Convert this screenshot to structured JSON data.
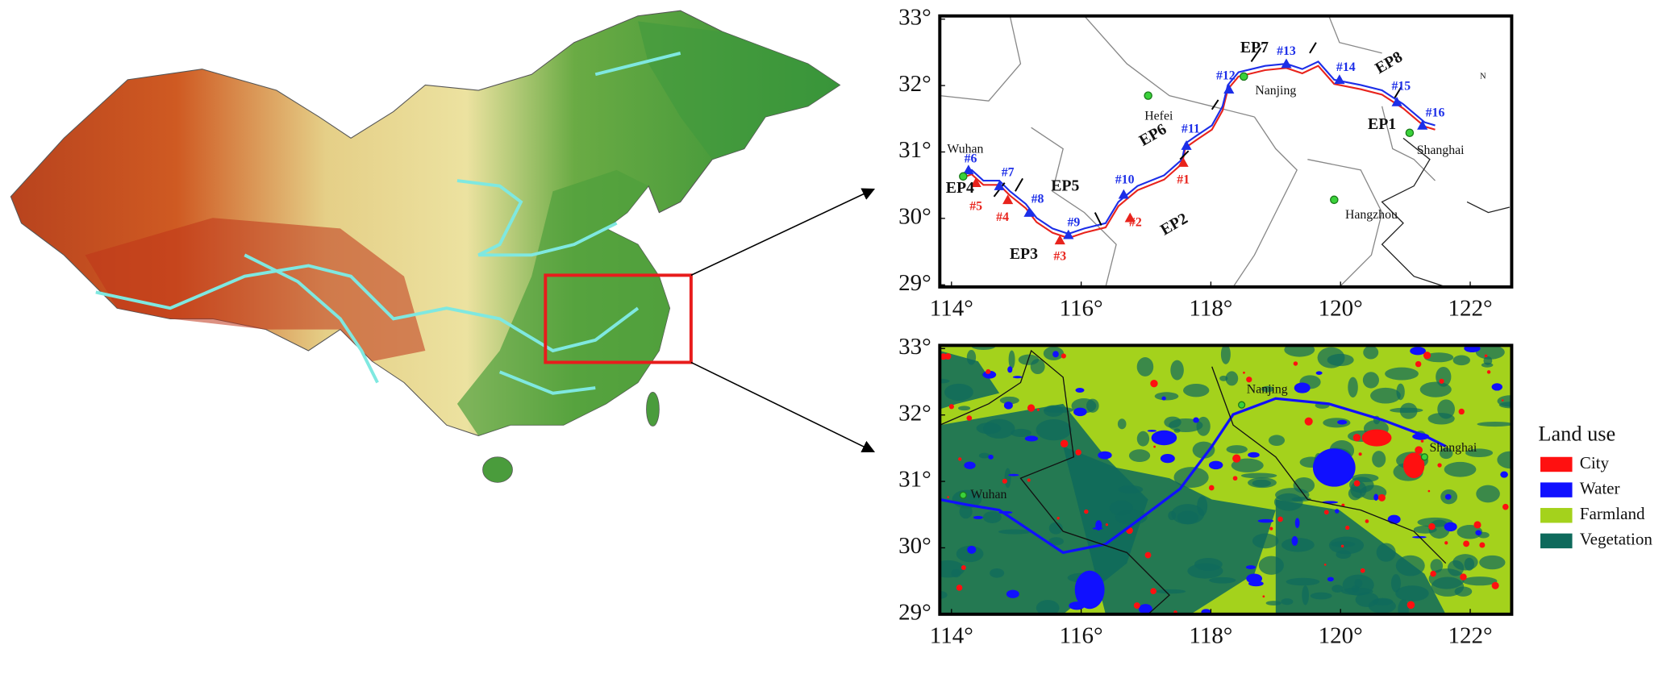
{
  "site_map": {
    "lat_ticks": [
      {
        "value": 33,
        "label": "33°"
      },
      {
        "value": 32,
        "label": "32°"
      },
      {
        "value": 31,
        "label": "31°"
      },
      {
        "value": 30,
        "label": "30°"
      },
      {
        "value": 29,
        "label": "29°"
      }
    ],
    "lon_ticks": [
      {
        "value": 114,
        "label": "114°"
      },
      {
        "value": 116,
        "label": "116°"
      },
      {
        "value": 118,
        "label": "118°"
      },
      {
        "value": 120,
        "label": "120°"
      },
      {
        "value": 122,
        "label": "122°"
      }
    ],
    "cities": [
      "Wuhan",
      "Hefei",
      "Nanjing",
      "Shanghai",
      "Hangzhou"
    ],
    "sites": [
      {
        "label": "#1",
        "color": "#e8231c"
      },
      {
        "label": "#2",
        "color": "#e8231c"
      },
      {
        "label": "#3",
        "color": "#e8231c"
      },
      {
        "label": "#4",
        "color": "#e8231c"
      },
      {
        "label": "#5",
        "color": "#e8231c"
      },
      {
        "label": "#6",
        "color": "#1c2ee8"
      },
      {
        "label": "#7",
        "color": "#1c2ee8"
      },
      {
        "label": "#8",
        "color": "#1c2ee8"
      },
      {
        "label": "#9",
        "color": "#1c2ee8"
      },
      {
        "label": "#10",
        "color": "#1c2ee8"
      },
      {
        "label": "#11",
        "color": "#1c2ee8"
      },
      {
        "label": "#12",
        "color": "#1c2ee8"
      },
      {
        "label": "#13",
        "color": "#1c2ee8"
      },
      {
        "label": "#14",
        "color": "#1c2ee8"
      },
      {
        "label": "#15",
        "color": "#1c2ee8"
      },
      {
        "label": "#16",
        "color": "#1c2ee8"
      }
    ],
    "segments": [
      "EP1",
      "EP2",
      "EP3",
      "EP4",
      "EP5",
      "EP6",
      "EP7",
      "EP8"
    ],
    "north": "N"
  },
  "landuse_map": {
    "lat_ticks": [
      {
        "value": 33,
        "label": "33°"
      },
      {
        "value": 32,
        "label": "32°"
      },
      {
        "value": 31,
        "label": "31°"
      },
      {
        "value": 30,
        "label": "30°"
      },
      {
        "value": 29,
        "label": "29°"
      }
    ],
    "lon_ticks": [
      {
        "value": 114,
        "label": "114°"
      },
      {
        "value": 116,
        "label": "116°"
      },
      {
        "value": 118,
        "label": "118°"
      },
      {
        "value": 120,
        "label": "120°"
      },
      {
        "value": 122,
        "label": "122°"
      }
    ],
    "cities": [
      "Nanjing",
      "Shanghai",
      "Wuhan"
    ],
    "legend": {
      "title": "Land use",
      "items": [
        {
          "label": "City",
          "color": "#ff1010"
        },
        {
          "label": "Water",
          "color": "#1010ff"
        },
        {
          "label": "Farmland",
          "color": "#a4d21c"
        },
        {
          "label": "Vegetation",
          "color": "#0e6a5c"
        }
      ]
    }
  }
}
